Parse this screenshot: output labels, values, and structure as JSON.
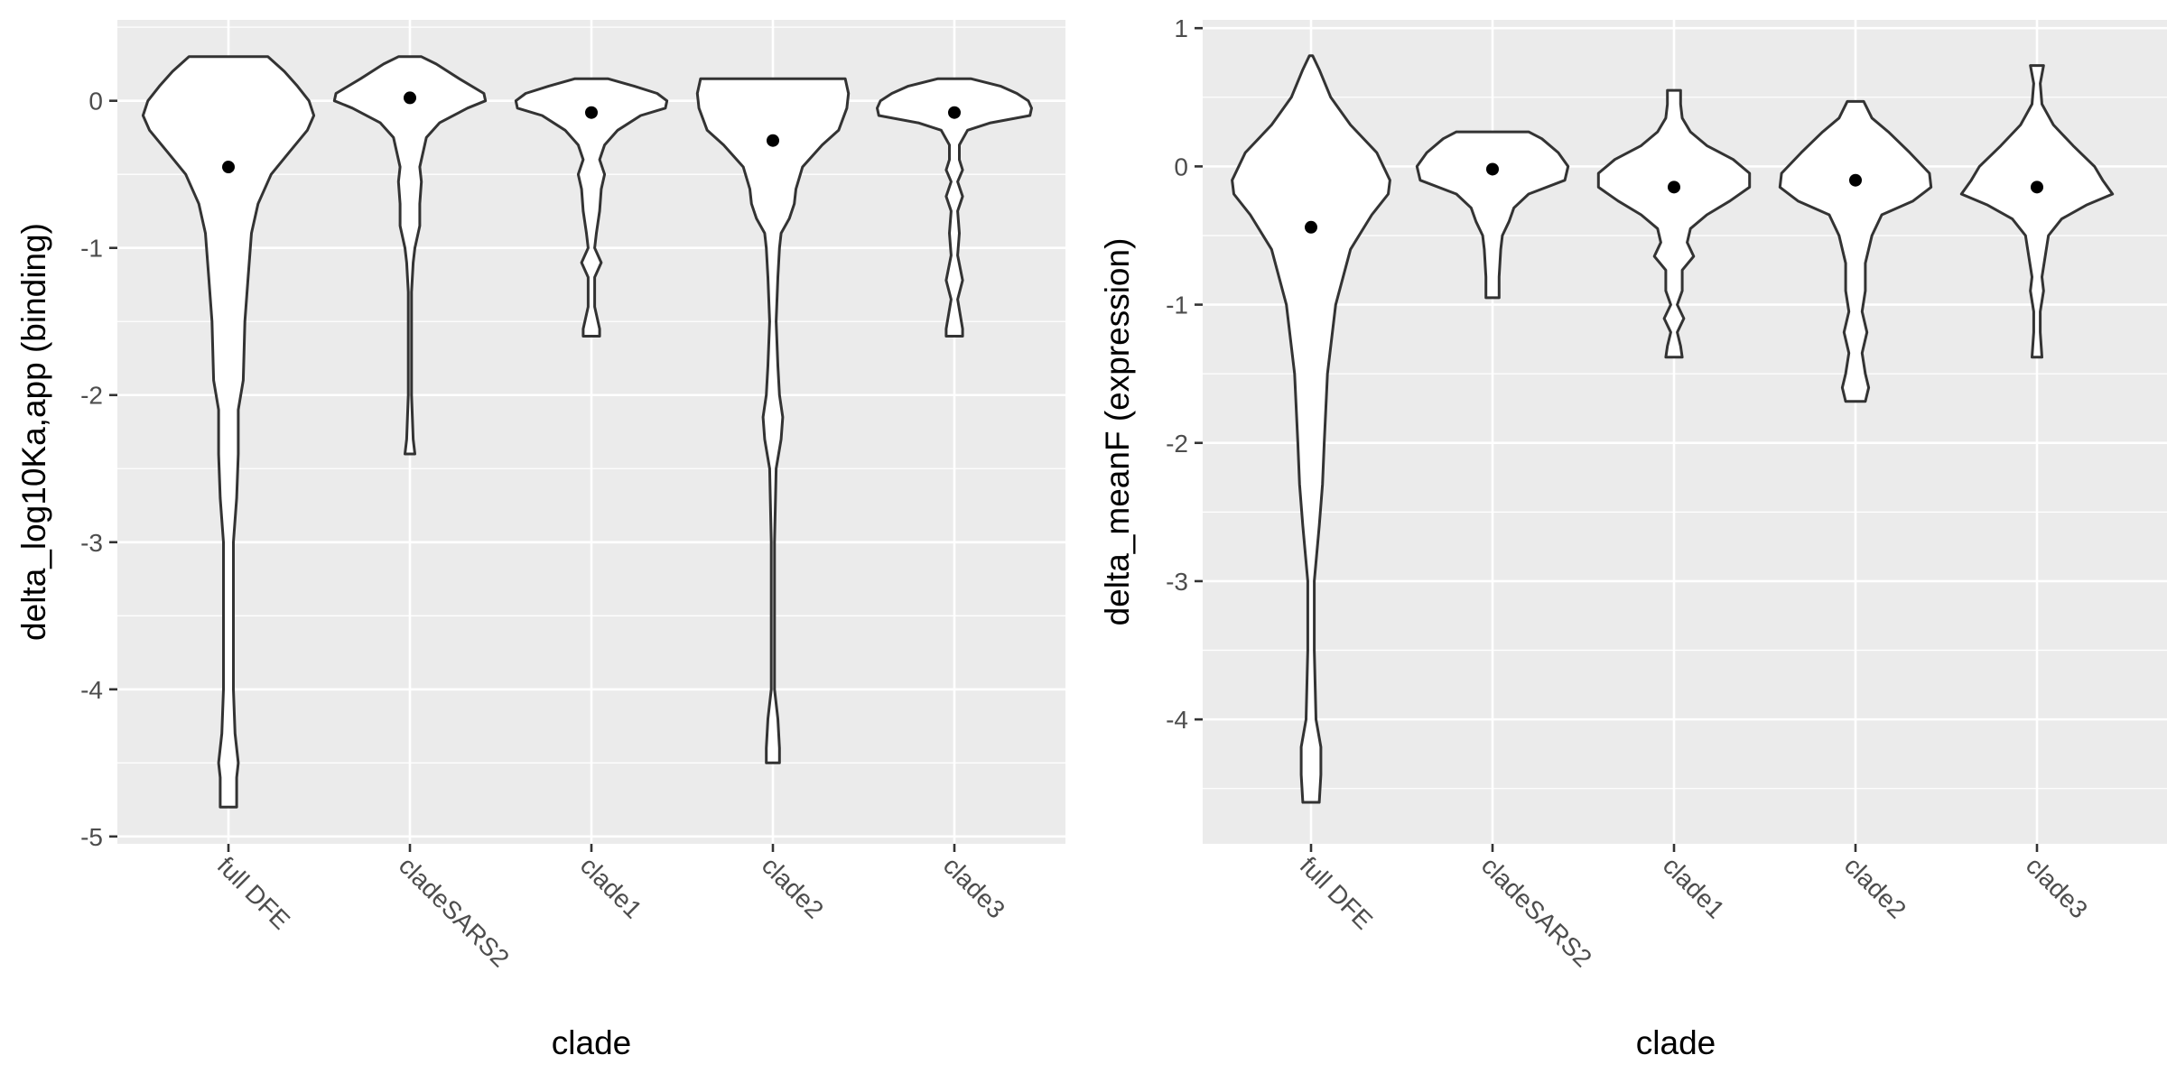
{
  "chart_data": [
    {
      "type": "violin",
      "panel": "left",
      "xlabel": "clade",
      "ylabel": "delta_log10Ka,app (binding)",
      "categories": [
        "full DFE",
        "cladeSARS2",
        "clade1",
        "clade2",
        "clade3"
      ],
      "ylim": [
        -5.05,
        0.55
      ],
      "yticks": [
        0,
        -1,
        -2,
        -3,
        -4,
        -5
      ],
      "ytick_labels": [
        "0",
        "-1",
        "-2",
        "-3",
        "-4",
        "-5"
      ],
      "grid": true,
      "means": [
        -0.45,
        0.02,
        -0.08,
        -0.27,
        -0.08
      ],
      "violins": [
        {
          "category": "full DFE",
          "profile": [
            [
              0.3,
              0.24
            ],
            [
              0.2,
              0.34
            ],
            [
              0.1,
              0.42
            ],
            [
              0.0,
              0.49
            ],
            [
              -0.1,
              0.52
            ],
            [
              -0.2,
              0.48
            ],
            [
              -0.35,
              0.37
            ],
            [
              -0.5,
              0.26
            ],
            [
              -0.7,
              0.18
            ],
            [
              -0.9,
              0.14
            ],
            [
              -1.2,
              0.12
            ],
            [
              -1.5,
              0.1
            ],
            [
              -1.9,
              0.09
            ],
            [
              -2.1,
              0.06
            ],
            [
              -2.4,
              0.06
            ],
            [
              -2.7,
              0.05
            ],
            [
              -3.0,
              0.03
            ],
            [
              -3.5,
              0.03
            ],
            [
              -4.0,
              0.03
            ],
            [
              -4.3,
              0.04
            ],
            [
              -4.5,
              0.06
            ],
            [
              -4.6,
              0.05
            ],
            [
              -4.8,
              0.05
            ]
          ]
        },
        {
          "category": "cladeSARS2",
          "profile": [
            [
              0.3,
              0.07
            ],
            [
              0.25,
              0.16
            ],
            [
              0.15,
              0.3
            ],
            [
              0.05,
              0.45
            ],
            [
              0.0,
              0.46
            ],
            [
              -0.05,
              0.35
            ],
            [
              -0.15,
              0.18
            ],
            [
              -0.25,
              0.1
            ],
            [
              -0.45,
              0.06
            ],
            [
              -0.55,
              0.07
            ],
            [
              -0.7,
              0.06
            ],
            [
              -0.85,
              0.06
            ],
            [
              -1.0,
              0.03
            ],
            [
              -1.1,
              0.02
            ],
            [
              -1.3,
              0.01
            ],
            [
              -1.6,
              0.01
            ],
            [
              -2.0,
              0.01
            ],
            [
              -2.3,
              0.02
            ],
            [
              -2.4,
              0.03
            ]
          ]
        },
        {
          "category": "clade1",
          "profile": [
            [
              0.15,
              0.1
            ],
            [
              0.1,
              0.26
            ],
            [
              0.05,
              0.4
            ],
            [
              0.0,
              0.46
            ],
            [
              -0.05,
              0.45
            ],
            [
              -0.1,
              0.3
            ],
            [
              -0.2,
              0.16
            ],
            [
              -0.3,
              0.08
            ],
            [
              -0.4,
              0.05
            ],
            [
              -0.5,
              0.08
            ],
            [
              -0.6,
              0.06
            ],
            [
              -0.75,
              0.05
            ],
            [
              -0.9,
              0.03
            ],
            [
              -1.0,
              0.02
            ],
            [
              -1.1,
              0.06
            ],
            [
              -1.2,
              0.02
            ],
            [
              -1.4,
              0.02
            ],
            [
              -1.55,
              0.05
            ],
            [
              -1.6,
              0.05
            ]
          ]
        },
        {
          "category": "clade2",
          "profile": [
            [
              0.15,
              0.44
            ],
            [
              0.05,
              0.46
            ],
            [
              -0.05,
              0.45
            ],
            [
              -0.2,
              0.4
            ],
            [
              -0.3,
              0.3
            ],
            [
              -0.45,
              0.18
            ],
            [
              -0.6,
              0.14
            ],
            [
              -0.7,
              0.13
            ],
            [
              -0.8,
              0.1
            ],
            [
              -0.9,
              0.05
            ],
            [
              -1.0,
              0.04
            ],
            [
              -1.2,
              0.03
            ],
            [
              -1.5,
              0.02
            ],
            [
              -1.8,
              0.03
            ],
            [
              -2.0,
              0.04
            ],
            [
              -2.15,
              0.06
            ],
            [
              -2.3,
              0.05
            ],
            [
              -2.5,
              0.02
            ],
            [
              -3.0,
              0.01
            ],
            [
              -3.5,
              0.01
            ],
            [
              -4.0,
              0.01
            ],
            [
              -4.2,
              0.03
            ],
            [
              -4.4,
              0.04
            ],
            [
              -4.5,
              0.04
            ]
          ]
        },
        {
          "category": "clade3",
          "profile": [
            [
              0.15,
              0.1
            ],
            [
              0.1,
              0.28
            ],
            [
              0.05,
              0.38
            ],
            [
              0.0,
              0.45
            ],
            [
              -0.05,
              0.47
            ],
            [
              -0.1,
              0.46
            ],
            [
              -0.15,
              0.22
            ],
            [
              -0.2,
              0.08
            ],
            [
              -0.3,
              0.03
            ],
            [
              -0.4,
              0.03
            ],
            [
              -0.47,
              0.05
            ],
            [
              -0.55,
              0.02
            ],
            [
              -0.65,
              0.05
            ],
            [
              -0.75,
              0.02
            ],
            [
              -0.9,
              0.03
            ],
            [
              -1.05,
              0.02
            ],
            [
              -1.22,
              0.05
            ],
            [
              -1.35,
              0.02
            ],
            [
              -1.55,
              0.05
            ],
            [
              -1.6,
              0.05
            ]
          ]
        }
      ]
    },
    {
      "type": "violin",
      "panel": "right",
      "xlabel": "clade",
      "ylabel": "delta_meanF (expression)",
      "categories": [
        "full DFE",
        "cladeSARS2",
        "clade1",
        "clade2",
        "clade3"
      ],
      "ylim": [
        -4.9,
        1.06
      ],
      "yticks": [
        1,
        0,
        -1,
        -2,
        -3,
        -4
      ],
      "ytick_labels": [
        "1",
        "0",
        "-1",
        "-2",
        "-3",
        "-4"
      ],
      "grid": true,
      "means": [
        -0.44,
        -0.02,
        -0.15,
        -0.1,
        -0.15
      ],
      "violins": [
        {
          "category": "full DFE",
          "profile": [
            [
              0.8,
              0.01
            ],
            [
              0.7,
              0.05
            ],
            [
              0.5,
              0.12
            ],
            [
              0.3,
              0.24
            ],
            [
              0.1,
              0.4
            ],
            [
              -0.1,
              0.48
            ],
            [
              -0.2,
              0.47
            ],
            [
              -0.35,
              0.37
            ],
            [
              -0.6,
              0.24
            ],
            [
              -1.0,
              0.15
            ],
            [
              -1.5,
              0.1
            ],
            [
              -2.0,
              0.08
            ],
            [
              -2.3,
              0.07
            ],
            [
              -2.6,
              0.05
            ],
            [
              -3.0,
              0.02
            ],
            [
              -3.5,
              0.02
            ],
            [
              -4.0,
              0.03
            ],
            [
              -4.2,
              0.06
            ],
            [
              -4.4,
              0.06
            ],
            [
              -4.6,
              0.05
            ]
          ]
        },
        {
          "category": "cladeSARS2",
          "profile": [
            [
              0.25,
              0.22
            ],
            [
              0.2,
              0.3
            ],
            [
              0.1,
              0.4
            ],
            [
              0.0,
              0.46
            ],
            [
              -0.1,
              0.44
            ],
            [
              -0.2,
              0.22
            ],
            [
              -0.3,
              0.13
            ],
            [
              -0.4,
              0.1
            ],
            [
              -0.5,
              0.06
            ],
            [
              -0.6,
              0.05
            ],
            [
              -0.8,
              0.04
            ],
            [
              -0.9,
              0.04
            ],
            [
              -0.95,
              0.04
            ]
          ]
        },
        {
          "category": "clade1",
          "profile": [
            [
              0.55,
              0.04
            ],
            [
              0.45,
              0.04
            ],
            [
              0.35,
              0.05
            ],
            [
              0.25,
              0.1
            ],
            [
              0.15,
              0.2
            ],
            [
              0.05,
              0.36
            ],
            [
              -0.05,
              0.46
            ],
            [
              -0.15,
              0.46
            ],
            [
              -0.25,
              0.34
            ],
            [
              -0.35,
              0.2
            ],
            [
              -0.45,
              0.1
            ],
            [
              -0.55,
              0.08
            ],
            [
              -0.65,
              0.12
            ],
            [
              -0.75,
              0.05
            ],
            [
              -0.9,
              0.05
            ],
            [
              -1.0,
              0.02
            ],
            [
              -1.1,
              0.06
            ],
            [
              -1.2,
              0.02
            ],
            [
              -1.3,
              0.04
            ],
            [
              -1.38,
              0.05
            ]
          ]
        },
        {
          "category": "clade2",
          "profile": [
            [
              0.47,
              0.05
            ],
            [
              0.35,
              0.1
            ],
            [
              0.25,
              0.2
            ],
            [
              0.1,
              0.33
            ],
            [
              -0.05,
              0.45
            ],
            [
              -0.15,
              0.46
            ],
            [
              -0.25,
              0.35
            ],
            [
              -0.35,
              0.16
            ],
            [
              -0.5,
              0.1
            ],
            [
              -0.7,
              0.06
            ],
            [
              -0.9,
              0.06
            ],
            [
              -1.05,
              0.04
            ],
            [
              -1.2,
              0.07
            ],
            [
              -1.35,
              0.04
            ],
            [
              -1.5,
              0.06
            ],
            [
              -1.6,
              0.08
            ],
            [
              -1.7,
              0.06
            ]
          ]
        },
        {
          "category": "clade3",
          "profile": [
            [
              0.73,
              0.04
            ],
            [
              0.6,
              0.02
            ],
            [
              0.45,
              0.03
            ],
            [
              0.3,
              0.1
            ],
            [
              0.15,
              0.22
            ],
            [
              0.0,
              0.35
            ],
            [
              -0.1,
              0.4
            ],
            [
              -0.2,
              0.46
            ],
            [
              -0.28,
              0.3
            ],
            [
              -0.38,
              0.15
            ],
            [
              -0.5,
              0.07
            ],
            [
              -0.65,
              0.05
            ],
            [
              -0.8,
              0.03
            ],
            [
              -0.9,
              0.04
            ],
            [
              -1.05,
              0.02
            ],
            [
              -1.2,
              0.02
            ],
            [
              -1.38,
              0.03
            ]
          ]
        }
      ]
    }
  ]
}
